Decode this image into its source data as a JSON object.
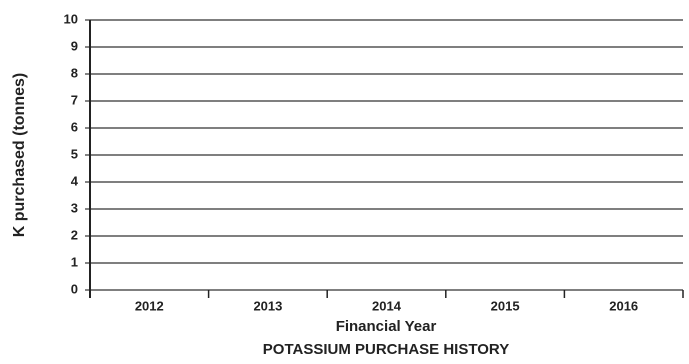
{
  "chart_data": {
    "type": "bar",
    "title": "POTASSIUM PURCHASE HISTORY",
    "xlabel": "Financial Year",
    "ylabel": "K purchased (tonnes)",
    "categories": [
      "2012",
      "2013",
      "2014",
      "2015",
      "2016"
    ],
    "ylim": [
      0,
      10
    ],
    "yticks": [
      0,
      1,
      2,
      3,
      4,
      5,
      6,
      7,
      8,
      9,
      10
    ],
    "grid": true,
    "color": "#333333"
  }
}
